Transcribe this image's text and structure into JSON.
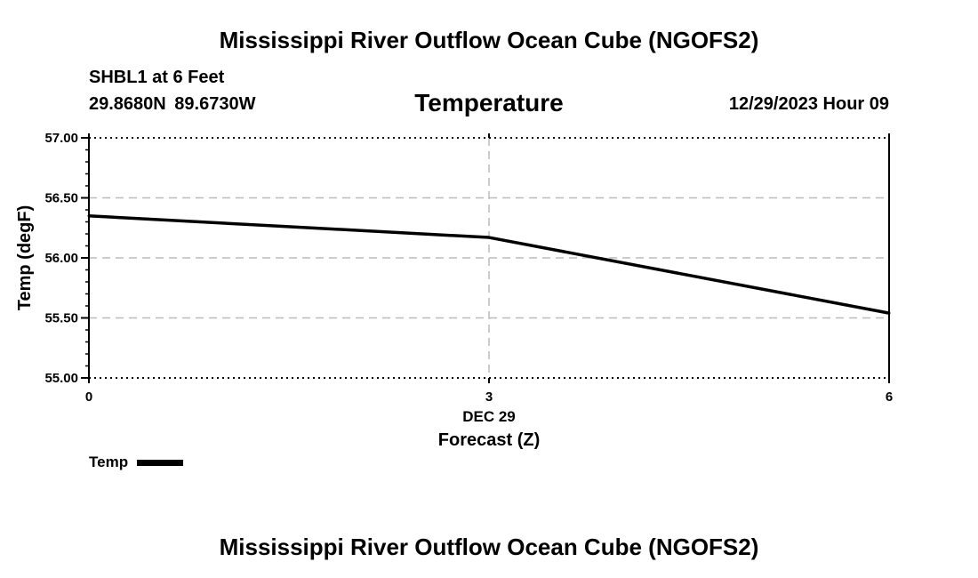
{
  "header": {
    "main_title": "Mississippi River Outflow Ocean Cube (NGOFS2)",
    "station": "SHBL1 at 6 Feet",
    "coords": "29.8680N 89.6730W",
    "chart_title": "Temperature",
    "datetime": "12/29/2023 Hour 09"
  },
  "footer": {
    "title": "Mississippi River Outflow Ocean Cube (NGOFS2)"
  },
  "legend": {
    "label": "Temp"
  },
  "colors": {
    "line": "#000000",
    "grid": "#bbbbbb"
  },
  "chart_data": {
    "type": "line",
    "title": "Temperature",
    "xlabel": "Forecast (Z)",
    "ylabel": "Temp (degF)",
    "x_ticks": [
      0,
      3,
      6
    ],
    "x_tick_labels": [
      "0",
      "3",
      "6"
    ],
    "x_date_label": "DEC 29",
    "xlim": [
      0,
      6
    ],
    "y_ticks": [
      55.0,
      55.5,
      56.0,
      56.5,
      57.0
    ],
    "y_tick_labels": [
      "55.00",
      "55.50",
      "56.00",
      "56.50",
      "57.00"
    ],
    "ylim": [
      55.0,
      57.0
    ],
    "grid": true,
    "series": [
      {
        "name": "Temp",
        "x": [
          0,
          3,
          6
        ],
        "values": [
          56.35,
          56.17,
          55.54
        ]
      }
    ]
  }
}
